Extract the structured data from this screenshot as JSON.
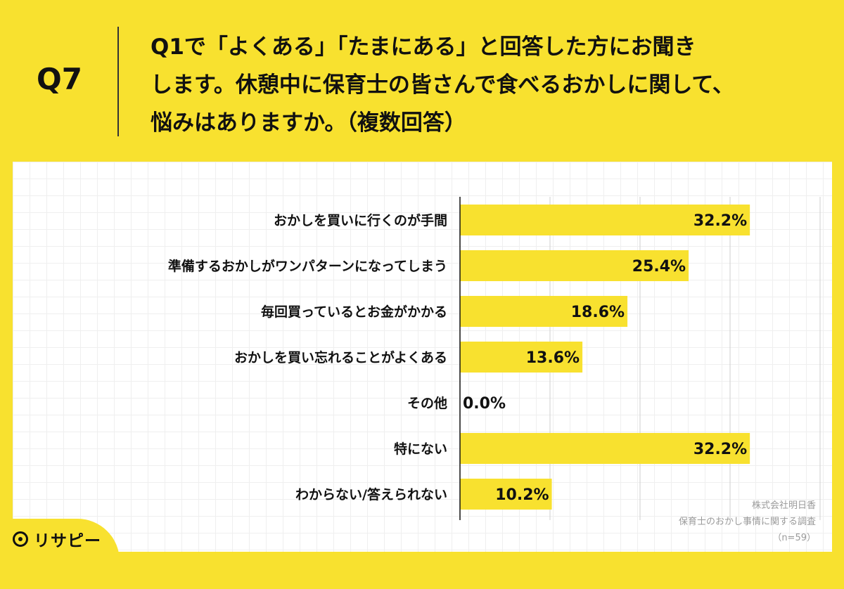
{
  "header": {
    "qnum": "Q7",
    "question_lines": [
      "Q1で「よくある」「たまにある」と回答した方にお聞き",
      "します。休憩中に保育士の皆さんで食べるおかしに関して、",
      "悩みはありますか。（複数回答）"
    ]
  },
  "chart_data": {
    "type": "bar",
    "orientation": "horizontal",
    "categories": [
      "おかしを買いに行くのが手間",
      "準備するおかしがワンパターンになってしまう",
      "毎回買っているとお金がかかる",
      "おかしを買い忘れることがよくある",
      "その他",
      "特にない",
      "わからない/答えられない"
    ],
    "values": [
      32.2,
      25.4,
      18.6,
      13.6,
      0.0,
      32.2,
      10.2
    ],
    "value_labels": [
      "32.2%",
      "25.4%",
      "18.6%",
      "13.6%",
      "0.0%",
      "32.2%",
      "10.2%"
    ],
    "xlim": [
      0,
      40
    ],
    "grid": true,
    "bar_color": "#F8E12F"
  },
  "source": {
    "company": "株式会社明日香",
    "survey": "保育士のおかし事情に関する調査",
    "n": "（n=59）"
  },
  "logo": {
    "text": "リサピー"
  }
}
